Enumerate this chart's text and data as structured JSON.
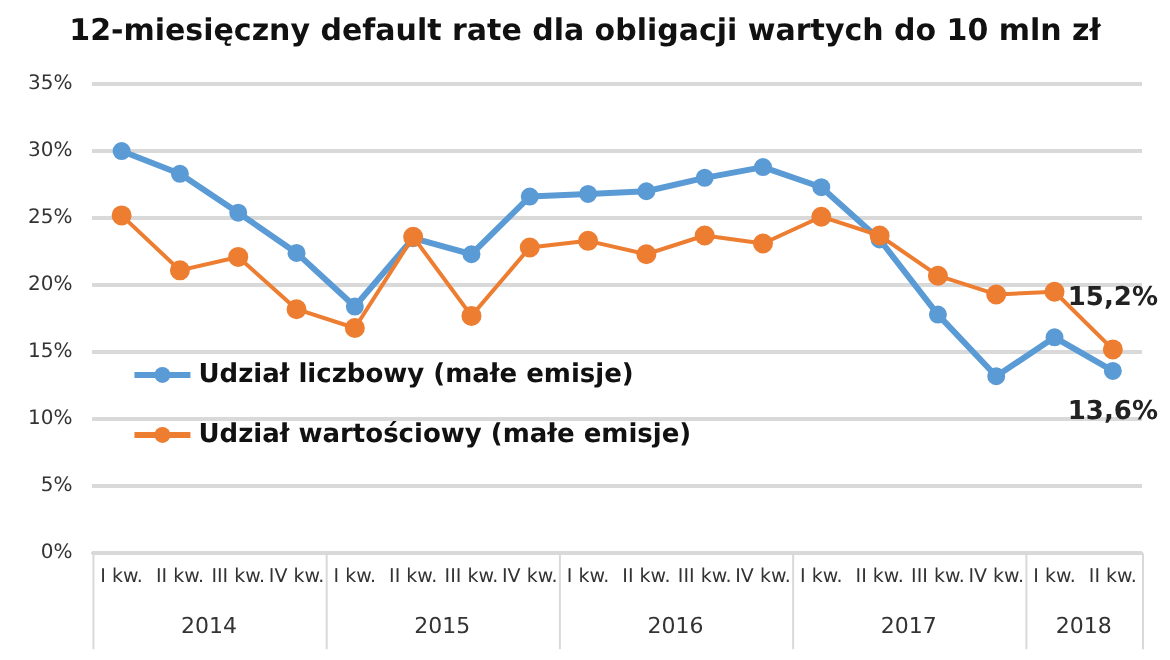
{
  "chart_data": {
    "type": "line",
    "title": "12-miesięczny default rate dla obligacji wartych do 10 mln zł",
    "categories": [
      "I kw.",
      "II kw.",
      "III kw.",
      "IV kw.",
      "I kw.",
      "II kw.",
      "III kw.",
      "IV kw.",
      "I kw.",
      "II kw.",
      "III kw.",
      "IV kw.",
      "I kw.",
      "II kw.",
      "III kw.",
      "IV kw.",
      "I kw.",
      "II kw."
    ],
    "annotations": [
      "2014",
      "2015",
      "2016",
      "2017",
      "2018"
    ],
    "series": [
      {
        "name": "Udział liczbowy (małe emisje)",
        "color": "#5b9bd5",
        "values": [
          30.0,
          28.3,
          25.4,
          22.4,
          18.4,
          23.5,
          22.3,
          26.6,
          26.8,
          27.0,
          28.0,
          28.8,
          27.3,
          23.4,
          17.8,
          13.2,
          16.1,
          13.6
        ],
        "value_labels": [
          null,
          null,
          null,
          null,
          null,
          null,
          null,
          null,
          null,
          null,
          null,
          null,
          null,
          null,
          null,
          null,
          null,
          "13,6%"
        ]
      },
      {
        "name": "Udział wartościowy (małe emisje)",
        "color": "#ed7d31",
        "values": [
          25.2,
          21.1,
          22.1,
          18.2,
          16.8,
          23.6,
          17.7,
          22.8,
          23.3,
          22.3,
          23.7,
          23.1,
          25.1,
          23.7,
          20.7,
          19.3,
          19.5,
          15.2
        ],
        "value_labels": [
          null,
          null,
          null,
          null,
          null,
          null,
          null,
          null,
          null,
          null,
          null,
          null,
          null,
          null,
          null,
          null,
          null,
          "15,2%"
        ]
      }
    ],
    "ylim": [
      0,
      35
    ],
    "yticks": [
      {
        "value": 0,
        "label": "0%"
      },
      {
        "value": 5,
        "label": "5%"
      },
      {
        "value": 10,
        "label": "10%"
      },
      {
        "value": 15,
        "label": "15%"
      },
      {
        "value": 20,
        "label": "20%"
      },
      {
        "value": 25,
        "label": "25%"
      },
      {
        "value": 30,
        "label": "30%"
      },
      {
        "value": 35,
        "label": "35%"
      }
    ],
    "grid": "y",
    "legend": "left",
    "marker": "circle",
    "line_style": "solid"
  }
}
